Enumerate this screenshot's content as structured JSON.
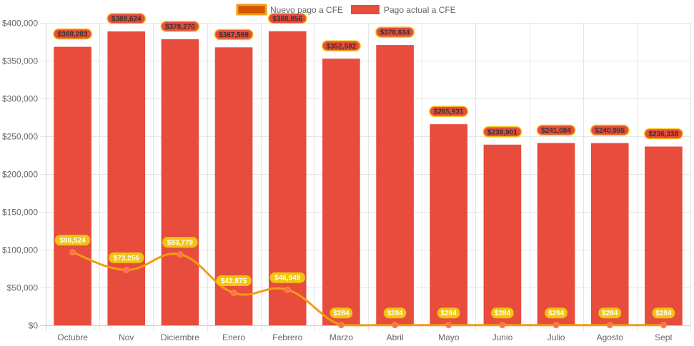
{
  "chart_data": {
    "type": "bar",
    "title": "",
    "xlabel": "",
    "ylabel": "",
    "ylim": [
      0,
      400000
    ],
    "y_ticks": [
      0,
      50000,
      100000,
      150000,
      200000,
      250000,
      300000,
      350000,
      400000
    ],
    "y_tick_labels": [
      "$0",
      "$50,000",
      "$100,000",
      "$150,000",
      "$200,000",
      "$250,000",
      "$300,000",
      "$350,000",
      "$400,000"
    ],
    "grid": true,
    "legend_position": "top-center",
    "categories": [
      "Octubre",
      "Nov",
      "Diciembre",
      "Enero",
      "Febrero",
      "Marzo",
      "Abril",
      "Mayo",
      "Junio",
      "Julio",
      "Agosto",
      "Sept"
    ],
    "series": [
      {
        "name": "Nuevo pago a CFE",
        "type": "line",
        "color": "#f39c12",
        "legend_fill": "#d35400",
        "point_color": "#ff6b6b",
        "label_bg": "#f1c40f",
        "values": [
          96524,
          73256,
          93779,
          42875,
          46949,
          284,
          284,
          284,
          284,
          284,
          284,
          284
        ],
        "data_labels": [
          "$96,524",
          "$73,256",
          "$93,779",
          "$42,875",
          "$46,949",
          "$284",
          "$284",
          "$284",
          "$284",
          "$284",
          "$284",
          "$284"
        ]
      },
      {
        "name": "Pago actual a CFE",
        "type": "bar",
        "color": "#e74c3c",
        "label_border": "#f1c40f",
        "values": [
          368283,
          388624,
          378270,
          367599,
          388856,
          352582,
          370634,
          265931,
          238901,
          241084,
          240995,
          236338
        ],
        "data_labels": [
          "$368,283",
          "$388,624",
          "$378,270",
          "$367,599",
          "$388,856",
          "$352,582",
          "$370,634",
          "$265,931",
          "$238,901",
          "$241,084",
          "$240,995",
          "$236,338"
        ]
      }
    ]
  }
}
